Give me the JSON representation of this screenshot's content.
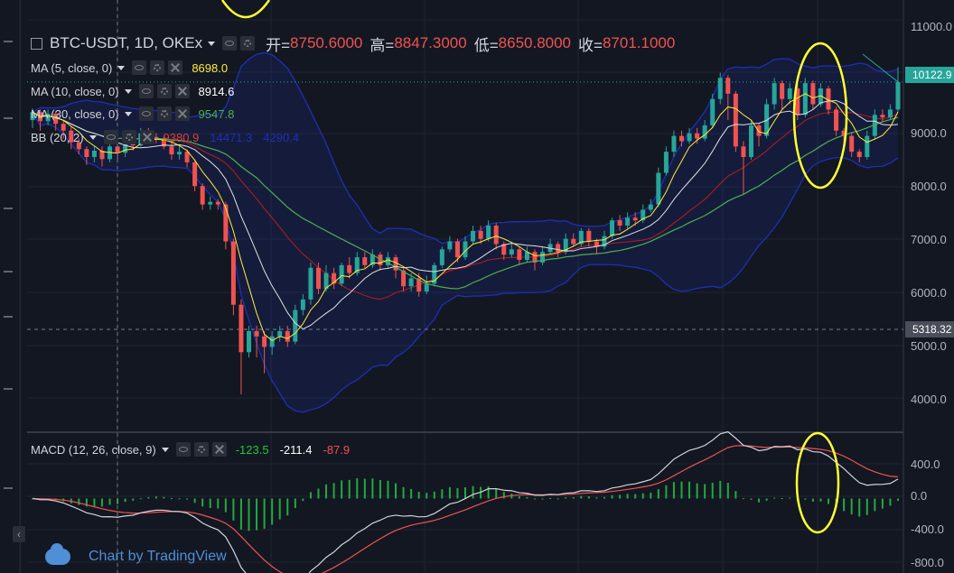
{
  "symbol": {
    "title": "BTC-USDT, 1D, OKEx",
    "open_label": "开=",
    "open": "8750.6000",
    "high_label": "高=",
    "high": "8847.3000",
    "low_label": "低=",
    "low": "8650.8000",
    "close_label": "收=",
    "close": "8701.1000",
    "up_color": "#26a69a",
    "down_color": "#ef5350"
  },
  "indicators": [
    {
      "label": "MA (5, close, 0)",
      "values": [
        "8698.0"
      ],
      "colors": [
        "#ffeb3b"
      ]
    },
    {
      "label": "MA (10, close, 0)",
      "values": [
        "8914.6"
      ],
      "colors": [
        "#ffffff"
      ]
    },
    {
      "label": "MA (30, close, 0)",
      "values": [
        "9547.8"
      ],
      "colors": [
        "#4caf50"
      ]
    },
    {
      "label": "BB (20, 2)",
      "values": [
        "9380.9",
        "14471.3",
        "4290.4"
      ],
      "colors": [
        "#e53935",
        "#1e2fb5",
        "#1e2fb5"
      ]
    }
  ],
  "macd": {
    "label": "MACD (12, 26, close, 9)",
    "values": [
      "-123.5",
      "-211.4",
      "-87.9"
    ],
    "colors": [
      "#26c441",
      "#ffffff",
      "#ef5350"
    ]
  },
  "price_axis": [
    "11000.0",
    "10000.0",
    "9000.0",
    "8000.0",
    "7000.0",
    "6000.0",
    "5000.0",
    "4000.0"
  ],
  "macd_axis": [
    "400.0",
    "0.0",
    "-400.0",
    "-800.0"
  ],
  "current_price_tag": "10122.9",
  "crosshair_price_tag": "5318.32",
  "branding": "Chart by TradingView",
  "nav_arrow": "‹",
  "chart_data": {
    "type": "candlestick",
    "title": "BTC-USDT, 1D, OKEx",
    "y_range": [
      3500,
      11300
    ],
    "x_count": 112,
    "candles": [
      [
        9400,
        9550,
        9620,
        9250
      ],
      [
        9550,
        9380,
        9600,
        9200
      ],
      [
        9380,
        9520,
        9600,
        9300
      ],
      [
        9520,
        9330,
        9560,
        9200
      ],
      [
        9330,
        9200,
        9400,
        9050
      ],
      [
        9200,
        8980,
        9280,
        8850
      ],
      [
        8980,
        8850,
        9050,
        8750
      ],
      [
        8850,
        8700,
        8900,
        8550
      ],
      [
        8700,
        8820,
        8900,
        8600
      ],
      [
        8820,
        8660,
        8900,
        8520
      ],
      [
        8660,
        8900,
        9000,
        8600
      ],
      [
        8900,
        8780,
        9000,
        8650
      ],
      [
        8780,
        9000,
        9080,
        8700
      ],
      [
        9000,
        8920,
        9100,
        8820
      ],
      [
        8920,
        9150,
        9250,
        8900
      ],
      [
        9150,
        9080,
        9250,
        9000
      ],
      [
        9080,
        9050,
        9150,
        8960
      ],
      [
        9050,
        8900,
        9100,
        8850
      ],
      [
        8900,
        8750,
        9000,
        8650
      ],
      [
        8750,
        8800,
        8900,
        8650
      ],
      [
        8800,
        8600,
        8850,
        8500
      ],
      [
        8600,
        8150,
        8650,
        8050
      ],
      [
        8150,
        7800,
        8200,
        7700
      ],
      [
        7800,
        7850,
        7950,
        7700
      ],
      [
        7850,
        7800,
        7900,
        7700
      ],
      [
        7800,
        7100,
        7850,
        6950
      ],
      [
        7100,
        5900,
        7150,
        5700
      ],
      [
        5900,
        5000,
        6000,
        4200
      ],
      [
        5000,
        5400,
        5500,
        4900
      ],
      [
        5400,
        5300,
        5500,
        4900
      ],
      [
        5300,
        5100,
        5400,
        4600
      ],
      [
        5100,
        5300,
        5400,
        4950
      ],
      [
        5300,
        5400,
        5500,
        5200
      ],
      [
        5400,
        5200,
        5500,
        5100
      ],
      [
        5200,
        5800,
        5900,
        5150
      ],
      [
        5800,
        6000,
        6100,
        5700
      ],
      [
        6000,
        6600,
        6700,
        5900
      ],
      [
        6600,
        6200,
        6700,
        6100
      ],
      [
        6200,
        6500,
        6650,
        6150
      ],
      [
        6500,
        6300,
        6600,
        6200
      ],
      [
        6300,
        6650,
        6700,
        6250
      ],
      [
        6650,
        6500,
        6800,
        6400
      ],
      [
        6500,
        6800,
        6900,
        6450
      ],
      [
        6800,
        6650,
        6900,
        6600
      ],
      [
        6650,
        6850,
        6950,
        6600
      ],
      [
        6850,
        6650,
        6900,
        6550
      ],
      [
        6650,
        6800,
        6900,
        6600
      ],
      [
        6800,
        6550,
        6850,
        6400
      ],
      [
        6550,
        6250,
        6600,
        6150
      ],
      [
        6250,
        6400,
        6500,
        6150
      ],
      [
        6400,
        6150,
        6500,
        6050
      ],
      [
        6150,
        6300,
        6450,
        6100
      ],
      [
        6300,
        6650,
        6700,
        6250
      ],
      [
        6650,
        6950,
        7000,
        6600
      ],
      [
        6950,
        7100,
        7200,
        6900
      ],
      [
        7100,
        6800,
        7150,
        6700
      ],
      [
        6800,
        7100,
        7200,
        6750
      ],
      [
        7100,
        7300,
        7400,
        7050
      ],
      [
        7300,
        7150,
        7400,
        7050
      ],
      [
        7150,
        7400,
        7500,
        7100
      ],
      [
        7400,
        7050,
        7450,
        6950
      ],
      [
        7050,
        6850,
        7100,
        6750
      ],
      [
        6850,
        6950,
        7050,
        6800
      ],
      [
        6950,
        6750,
        7000,
        6650
      ],
      [
        6750,
        6900,
        7000,
        6700
      ],
      [
        6900,
        6700,
        6950,
        6550
      ],
      [
        6700,
        6900,
        7000,
        6650
      ],
      [
        6900,
        7050,
        7150,
        6850
      ],
      [
        7050,
        6900,
        7100,
        6800
      ],
      [
        6900,
        7150,
        7250,
        6850
      ],
      [
        7150,
        7050,
        7250,
        7000
      ],
      [
        7050,
        7300,
        7350,
        7000
      ],
      [
        7300,
        7100,
        7350,
        7000
      ],
      [
        7100,
        7000,
        7150,
        6850
      ],
      [
        7000,
        7200,
        7300,
        6950
      ],
      [
        7200,
        7500,
        7550,
        7150
      ],
      [
        7500,
        7400,
        7600,
        7300
      ],
      [
        7400,
        7550,
        7650,
        7350
      ],
      [
        7550,
        7500,
        7650,
        7400
      ],
      [
        7500,
        7700,
        7800,
        7450
      ],
      [
        7700,
        7800,
        7900,
        7650
      ],
      [
        7800,
        8400,
        8500,
        7750
      ],
      [
        8400,
        8800,
        8900,
        8350
      ],
      [
        8800,
        9100,
        9200,
        8700
      ],
      [
        9100,
        9000,
        9200,
        8900
      ],
      [
        9000,
        9150,
        9250,
        8950
      ],
      [
        9150,
        9050,
        9250,
        8950
      ],
      [
        9050,
        9300,
        9400,
        9000
      ],
      [
        9300,
        9800,
        9900,
        9250
      ],
      [
        9800,
        10200,
        10300,
        9700
      ],
      [
        10200,
        9900,
        10250,
        9400
      ],
      [
        9900,
        8900,
        9950,
        8800
      ],
      [
        8900,
        8700,
        9000,
        8000
      ],
      [
        8700,
        9300,
        9400,
        8650
      ],
      [
        9300,
        9100,
        9350,
        8900
      ],
      [
        9100,
        9700,
        9800,
        9050
      ],
      [
        9700,
        10100,
        10200,
        9600
      ],
      [
        10100,
        9800,
        10150,
        9600
      ],
      [
        9800,
        10000,
        10100,
        9700
      ],
      [
        10000,
        9500,
        10100,
        9400
      ],
      [
        9500,
        10100,
        10200,
        9450
      ],
      [
        10100,
        9700,
        10150,
        9600
      ],
      [
        9700,
        10000,
        10100,
        9650
      ],
      [
        10000,
        9600,
        10050,
        9500
      ],
      [
        9600,
        9200,
        9650,
        9100
      ],
      [
        9200,
        9100,
        9250,
        8900
      ],
      [
        9100,
        8800,
        9150,
        8700
      ],
      [
        8800,
        8700,
        8850,
        8600
      ],
      [
        8700,
        9100,
        9200,
        8650
      ],
      [
        9100,
        9500,
        9600,
        9050
      ],
      [
        9500,
        9450,
        9600,
        9350
      ],
      [
        9450,
        9600,
        9700,
        9400
      ],
      [
        9600,
        10122.9,
        10400,
        9550
      ]
    ],
    "macd_y_range": [
      -820,
      720
    ]
  }
}
